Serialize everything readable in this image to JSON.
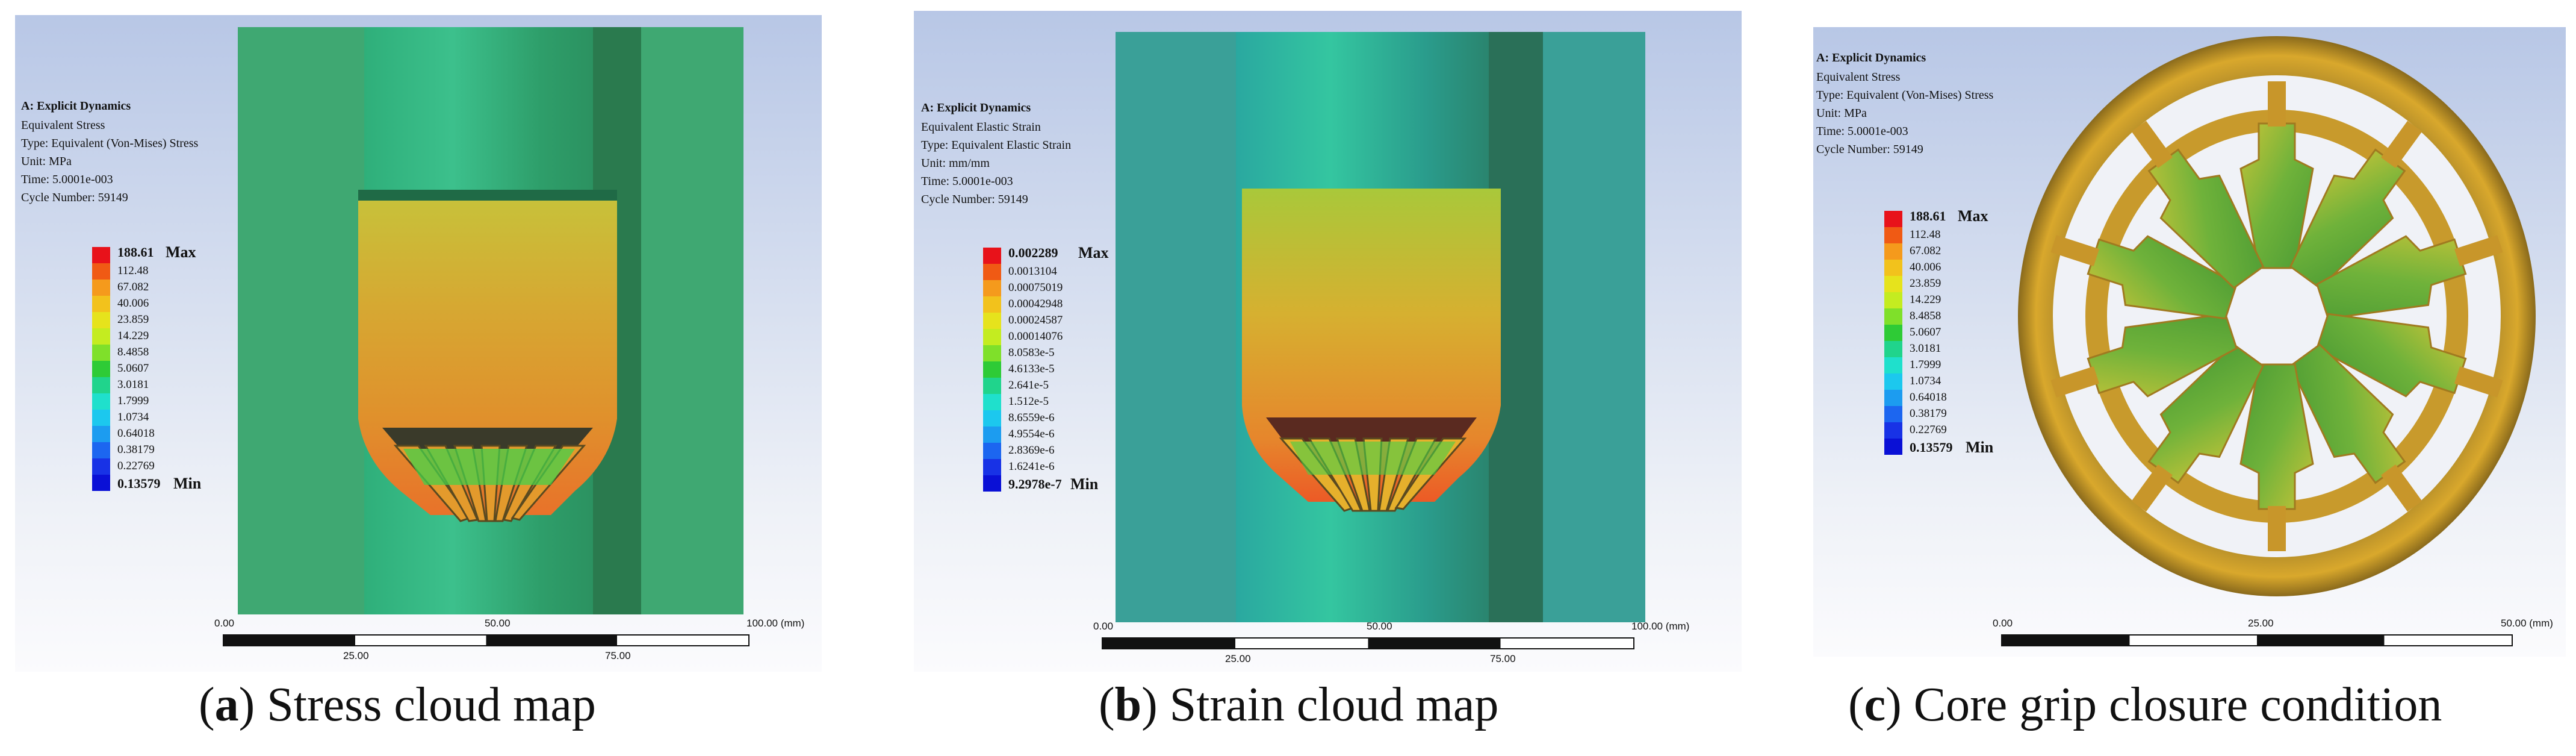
{
  "panels": [
    {
      "id": "a",
      "analysis": "A: Explicit Dynamics",
      "quantity": "Equivalent Stress",
      "type": "Type: Equivalent (Von-Mises) Stress",
      "unit": "Unit: MPa",
      "time": "Time: 5.0001e-003",
      "cycle": "Cycle Number: 59149",
      "legend_values": [
        "188.61",
        "112.48",
        "67.082",
        "40.006",
        "23.859",
        "14.229",
        "8.4858",
        "5.0607",
        "3.0181",
        "1.7999",
        "1.0734",
        "0.64018",
        "0.38179",
        "0.22769",
        "0.13579"
      ],
      "max_tag": "Max",
      "min_tag": "Min",
      "scale_top": [
        "0.00",
        "50.00",
        "100.00 (mm)"
      ],
      "scale_bottom": [
        "25.00",
        "75.00"
      ],
      "caption_letter": "a",
      "caption_text": "Stress cloud map"
    },
    {
      "id": "b",
      "analysis": "A: Explicit Dynamics",
      "quantity": "Equivalent Elastic Strain",
      "type": "Type: Equivalent Elastic Strain",
      "unit": "Unit: mm/mm",
      "time": "Time: 5.0001e-003",
      "cycle": "Cycle Number: 59149",
      "legend_values": [
        "0.002289",
        "0.0013104",
        "0.00075019",
        "0.00042948",
        "0.00024587",
        "0.00014076",
        "8.0583e-5",
        "4.6133e-5",
        "2.641e-5",
        "1.512e-5",
        "8.6559e-6",
        "4.9554e-6",
        "2.8369e-6",
        "1.6241e-6",
        "9.2978e-7"
      ],
      "max_tag": "Max",
      "min_tag": "Min",
      "scale_top": [
        "0.00",
        "50.00",
        "100.00 (mm)"
      ],
      "scale_bottom": [
        "25.00",
        "75.00"
      ],
      "caption_letter": "b",
      "caption_text": "Strain cloud map"
    },
    {
      "id": "c",
      "analysis": "A: Explicit Dynamics",
      "quantity": "Equivalent Stress",
      "type": "Type: Equivalent (Von-Mises) Stress",
      "unit": "Unit: MPa",
      "time": "Time: 5.0001e-003",
      "cycle": "Cycle Number: 59149",
      "legend_values": [
        "188.61",
        "112.48",
        "67.082",
        "40.006",
        "23.859",
        "14.229",
        "8.4858",
        "5.0607",
        "3.0181",
        "1.7999",
        "1.0734",
        "0.64018",
        "0.38179",
        "0.22769",
        "0.13579"
      ],
      "max_tag": "Max",
      "min_tag": "Min",
      "scale_top": [
        "0.00",
        "25.00",
        "50.00 (mm)"
      ],
      "scale_bottom": [],
      "caption_letter": "c",
      "caption_text": "Core grip closure condition"
    }
  ],
  "legend_colors": [
    "#e8121a",
    "#f05a14",
    "#f59a1c",
    "#f2c21c",
    "#e6e31c",
    "#c4ec20",
    "#7fe02a",
    "#2ecb36",
    "#20d48c",
    "#1fe0cc",
    "#1cc8ee",
    "#1c9cf0",
    "#1c66f0",
    "#1832e6",
    "#0a10d6"
  ]
}
